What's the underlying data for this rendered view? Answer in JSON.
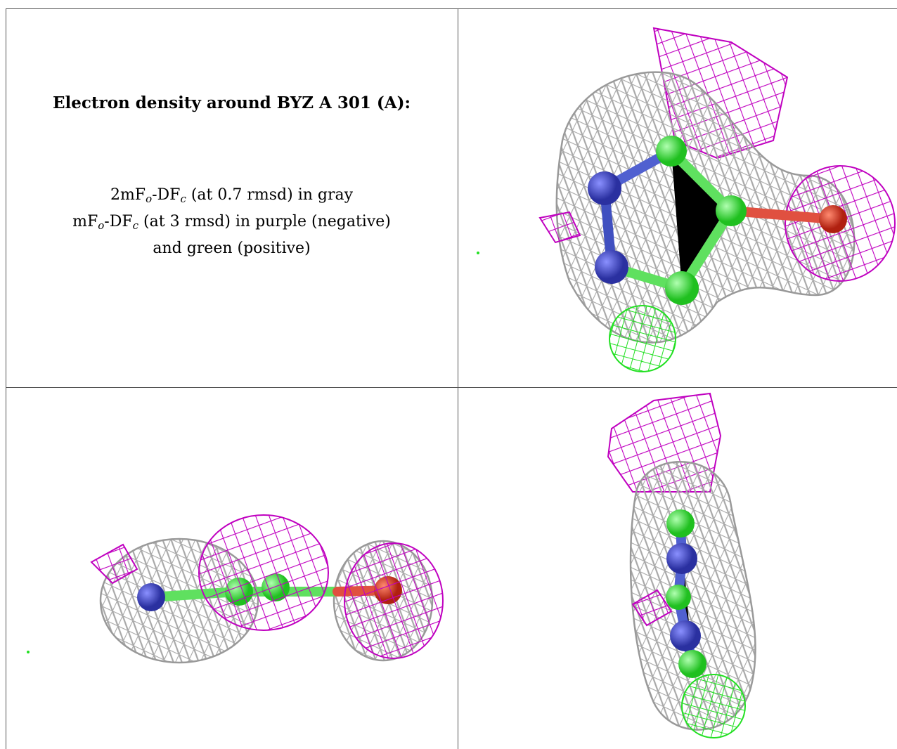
{
  "cell_text": {
    "title": "Electron density around BYZ A 301 (A):",
    "lines": [
      [
        "2mF",
        "o",
        "-DF",
        "c",
        " (at 0.7 rmsd) in gray"
      ],
      [
        "mF",
        "o",
        "-DF",
        "c",
        " (at 3 rmsd) in purple (negative)"
      ],
      [
        "and green (positive)"
      ]
    ]
  }
}
